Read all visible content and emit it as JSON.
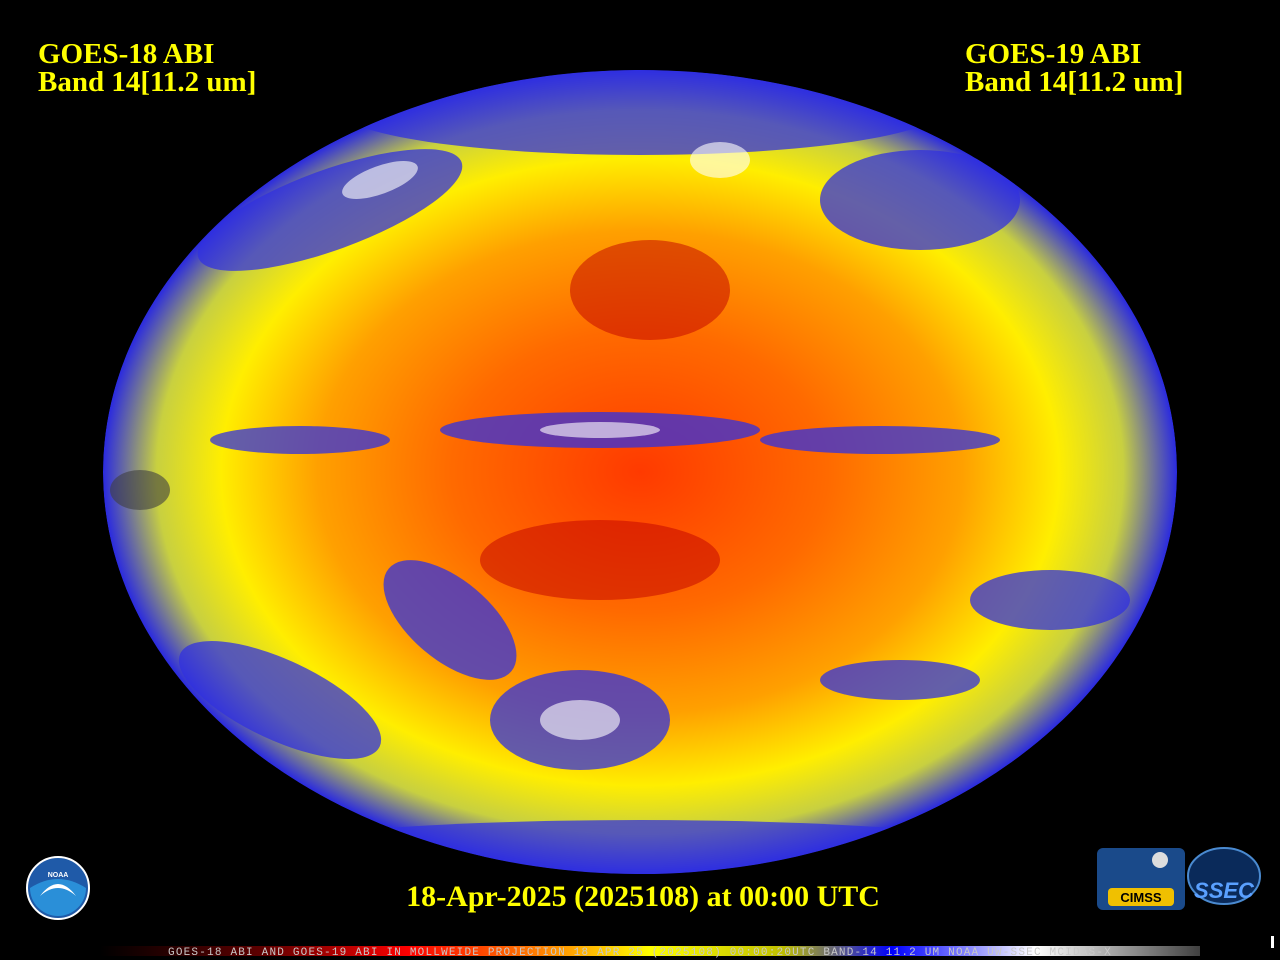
{
  "header": {
    "left": {
      "title": "GOES-18 ABI",
      "band": "Band 14[11.2 um]"
    },
    "right": {
      "title": "GOES-19 ABI",
      "band": "Band 14[11.2 um]"
    }
  },
  "footer": {
    "timestamp": "18-Apr-2025 (2025108) at 00:00 UTC"
  },
  "colorbar": {
    "caption": "GOES-18 ABI AND GOES-19 ABI IN MOLLWEIDE PROJECTION 18 APR 25 (2025108) 00:00:20UTC BAND-14 11.2 UM NOAA UW-SSEC MCIDAS-X"
  },
  "logos": {
    "noaa": "NOAA",
    "cimss": "CIMSS",
    "ssec": "SSEC"
  }
}
